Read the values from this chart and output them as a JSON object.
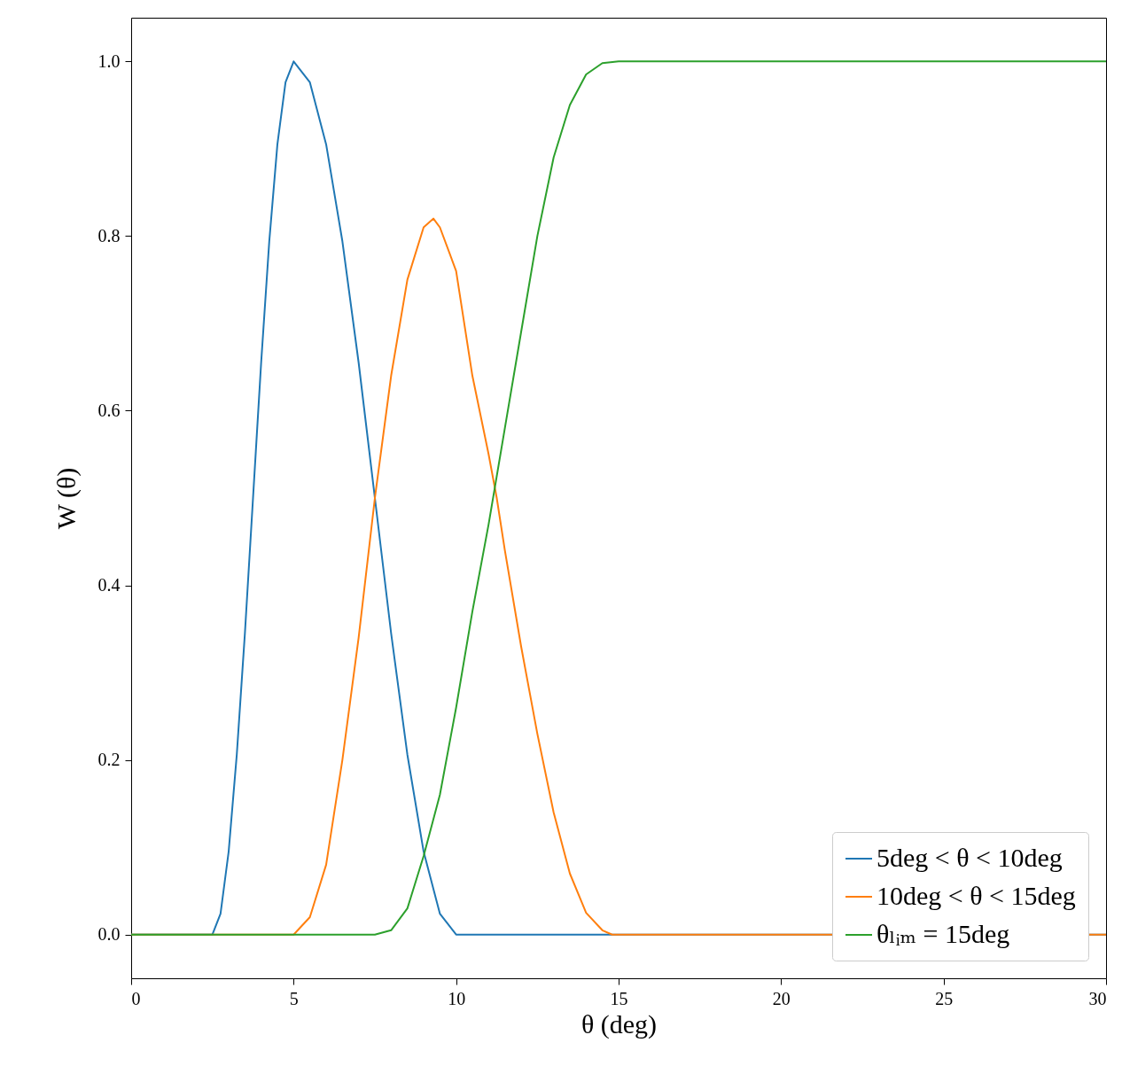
{
  "chart_data": {
    "type": "line",
    "xlabel": "θ (deg)",
    "ylabel": "W (θ)",
    "xlim": [
      0,
      30
    ],
    "ylim": [
      -0.05,
      1.05
    ],
    "xticks": [
      0,
      5,
      10,
      15,
      20,
      25,
      30
    ],
    "yticks": [
      {
        "value": 0,
        "label": "0.0"
      },
      {
        "value": 0.2,
        "label": "0.2"
      },
      {
        "value": 0.4,
        "label": "0.4"
      },
      {
        "value": 0.6,
        "label": "0.6"
      },
      {
        "value": 0.8,
        "label": "0.8"
      },
      {
        "value": 1,
        "label": "1.0"
      }
    ],
    "grid": false,
    "legend": "bottom right",
    "line_style": "solid",
    "marker": "none",
    "series": [
      {
        "name": "5deg < θ < 10deg",
        "color": "#1f77b4",
        "x": [
          0,
          2.5,
          2.75,
          3,
          3.25,
          3.5,
          3.75,
          4,
          4.25,
          4.5,
          4.75,
          5,
          5.5,
          6,
          6.5,
          7,
          7.5,
          8,
          8.5,
          9,
          9.5,
          10,
          30
        ],
        "values": [
          0,
          0,
          0.024,
          0.095,
          0.206,
          0.345,
          0.5,
          0.655,
          0.794,
          0.905,
          0.976,
          1,
          0.976,
          0.905,
          0.794,
          0.655,
          0.5,
          0.345,
          0.206,
          0.095,
          0.024,
          0,
          0
        ]
      },
      {
        "name": "10deg < θ < 15deg",
        "color": "#ff7f0e",
        "x": [
          0,
          5,
          5.5,
          6,
          6.5,
          7,
          7.5,
          8,
          8.5,
          9,
          9.3,
          9.5,
          10,
          10.5,
          11,
          11.25,
          11.5,
          12,
          12.5,
          13,
          13.5,
          14,
          14.5,
          14.8,
          30
        ],
        "values": [
          0,
          0,
          0.02,
          0.08,
          0.2,
          0.34,
          0.5,
          0.64,
          0.75,
          0.81,
          0.82,
          0.81,
          0.76,
          0.64,
          0.55,
          0.5,
          0.44,
          0.33,
          0.23,
          0.14,
          0.07,
          0.025,
          0.005,
          0,
          0
        ]
      },
      {
        "name": "θₗᵢₘ = 15deg",
        "color": "#2ca02c",
        "x": [
          0,
          7.5,
          8,
          8.5,
          9,
          9.5,
          10,
          10.5,
          11,
          11.5,
          12,
          12.5,
          13,
          13.5,
          14,
          14.5,
          15,
          30
        ],
        "values": [
          0,
          0,
          0.005,
          0.03,
          0.09,
          0.16,
          0.26,
          0.37,
          0.47,
          0.58,
          0.69,
          0.8,
          0.89,
          0.95,
          0.985,
          0.998,
          1,
          1
        ]
      }
    ]
  }
}
